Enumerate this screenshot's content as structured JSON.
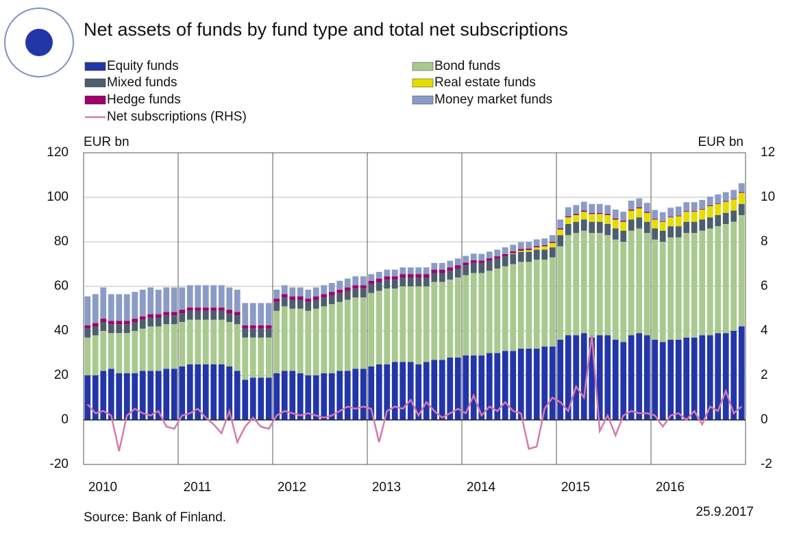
{
  "chart_data": {
    "type": "bar",
    "stacked": true,
    "title": "Net assets of funds by fund type and total net subscriptions",
    "y_label": "EUR bn",
    "y2_label": "EUR bn",
    "source": "Source: Bank of Finland.",
    "date": "25.9.2017",
    "categories": [
      "2010",
      null,
      null,
      null,
      null,
      null,
      null,
      null,
      null,
      null,
      null,
      null,
      "2011",
      null,
      null,
      null,
      null,
      null,
      null,
      null,
      null,
      null,
      null,
      null,
      "2012",
      null,
      null,
      null,
      null,
      null,
      null,
      null,
      null,
      null,
      null,
      null,
      "2013",
      null,
      null,
      null,
      null,
      null,
      null,
      null,
      null,
      null,
      null,
      null,
      "2014",
      null,
      null,
      null,
      null,
      null,
      null,
      null,
      null,
      null,
      null,
      null,
      "2015",
      null,
      null,
      null,
      null,
      null,
      null,
      null,
      null,
      null,
      null,
      null,
      "2016",
      null,
      null,
      null,
      null,
      null,
      null,
      null,
      null,
      null,
      null,
      null
    ],
    "series": [
      {
        "name": "Equity funds",
        "color": "#2336a8",
        "values": [
          20,
          20,
          22,
          23,
          21,
          21,
          21,
          22,
          22,
          22,
          23,
          23,
          24,
          25,
          25,
          25,
          25,
          25,
          24,
          22,
          18,
          19,
          19,
          19,
          21,
          22,
          22,
          21,
          20,
          20,
          21,
          21,
          22,
          22,
          23,
          23,
          24,
          25,
          25,
          26,
          26,
          26,
          25,
          26,
          27,
          27,
          28,
          28,
          29,
          29,
          29,
          30,
          30,
          31,
          31,
          32,
          32,
          32,
          33,
          33,
          36,
          38,
          38,
          39,
          37,
          38,
          38,
          36,
          35,
          38,
          39,
          38,
          36,
          35,
          36,
          36,
          37,
          37,
          38,
          38,
          39,
          39,
          40,
          42
        ]
      },
      {
        "name": "Bond funds",
        "color": "#a9c98f",
        "values": [
          17,
          18,
          18,
          16,
          18,
          18,
          19,
          19,
          20,
          20,
          20,
          20,
          20,
          20,
          20,
          20,
          20,
          20,
          20,
          21,
          19,
          18,
          18,
          18,
          28,
          29,
          28,
          29,
          29,
          30,
          30,
          31,
          31,
          32,
          32,
          32,
          33,
          33,
          34,
          33,
          34,
          34,
          35,
          34,
          35,
          35,
          35,
          36,
          36,
          37,
          37,
          37,
          38,
          38,
          39,
          39,
          39,
          40,
          39,
          40,
          42,
          45,
          46,
          46,
          47,
          46,
          45,
          45,
          45,
          47,
          47,
          46,
          45,
          45,
          46,
          46,
          47,
          47,
          47,
          48,
          48,
          49,
          49,
          50
        ]
      },
      {
        "name": "Mixed funds",
        "color": "#4d5e6e",
        "values": [
          4,
          4,
          4,
          4,
          4,
          4,
          4,
          4,
          4,
          4,
          4,
          4,
          4,
          4,
          4,
          4,
          4,
          4,
          4,
          4,
          4,
          4,
          4,
          4,
          4,
          4,
          4,
          4,
          4,
          4,
          4,
          4,
          4,
          4,
          4,
          4,
          4,
          4,
          4,
          4,
          4,
          4,
          4,
          4,
          4,
          4,
          4,
          4,
          4.5,
          4.5,
          4.5,
          4.5,
          4.5,
          4.5,
          4.5,
          4.5,
          4.5,
          4.5,
          4.5,
          4.5,
          5,
          5,
          5,
          5,
          5,
          5,
          5,
          5,
          5,
          5,
          5,
          5,
          5,
          5,
          5,
          5,
          5,
          5,
          5,
          5,
          5,
          5,
          5,
          5
        ]
      },
      {
        "name": "Real estate funds",
        "color": "#e6dc00",
        "values": [
          0,
          0,
          0,
          0,
          0,
          0,
          0,
          0,
          0,
          0,
          0,
          0,
          0,
          0,
          0,
          0,
          0,
          0,
          0,
          0,
          0,
          0,
          0,
          0,
          0,
          0,
          0,
          0,
          0,
          0,
          0,
          0,
          0,
          0,
          0,
          0,
          0,
          0,
          0,
          0,
          0,
          0,
          0,
          0,
          0,
          0,
          0,
          0,
          0,
          0,
          0,
          0,
          0,
          0,
          0.3,
          0.5,
          0.8,
          1,
          1.5,
          2,
          2.5,
          3,
          3,
          3.5,
          3.5,
          3.5,
          4,
          4,
          4,
          4,
          4,
          4,
          4,
          4,
          4,
          4.5,
          4.5,
          4.5,
          4.5,
          5,
          5,
          5,
          5,
          5
        ]
      },
      {
        "name": "Hedge funds",
        "color": "#a0006a",
        "values": [
          1.5,
          1.5,
          1.5,
          1.5,
          1.5,
          1.5,
          1.5,
          1.5,
          1.5,
          1.5,
          1.5,
          1.5,
          1.5,
          1.5,
          1.5,
          1.5,
          1.5,
          1.5,
          1.5,
          1.5,
          1.5,
          1.5,
          1.5,
          1.5,
          1.5,
          1.5,
          1.5,
          1.5,
          1.5,
          1.5,
          1.5,
          1.5,
          1.5,
          1.5,
          1.5,
          1.5,
          1.5,
          1.5,
          1.5,
          1.5,
          1.5,
          1.5,
          1.5,
          1.5,
          1.5,
          1.5,
          1.5,
          1.5,
          1.2,
          1.2,
          1.1,
          1.1,
          1,
          1,
          0.9,
          0.8,
          0.7,
          0.6,
          0.5,
          0.5,
          0.5,
          0.5,
          0.5,
          0.5,
          0.5,
          0.5,
          0.5,
          0.5,
          0.5,
          0.5,
          0.5,
          0.5,
          0.3,
          0.3,
          0.3,
          0.3,
          0.3,
          0.3,
          0.3,
          0.3,
          0.3,
          0.3,
          0.3,
          0.3
        ]
      },
      {
        "name": "Money market funds",
        "color": "#8a9bc6",
        "values": [
          13,
          13,
          14,
          12,
          12,
          12,
          12,
          12,
          12,
          11,
          11,
          11,
          10,
          10,
          10,
          10,
          10,
          10,
          10,
          10,
          10,
          10,
          10,
          10,
          4,
          4,
          4,
          4,
          4,
          4,
          4,
          4,
          4,
          4,
          4,
          4,
          3,
          3,
          3,
          3,
          3,
          3,
          3,
          3,
          3,
          3,
          3,
          3,
          3,
          3,
          3,
          3,
          3,
          3,
          3,
          3,
          3,
          3,
          3,
          3,
          4,
          4,
          4,
          4,
          4,
          4,
          4,
          4,
          4,
          4,
          4,
          4,
          4,
          4,
          4,
          4,
          4,
          4,
          4,
          4,
          4,
          4,
          4,
          4
        ]
      },
      {
        "name": "Net subscriptions (RHS)",
        "color": "#d47aaa",
        "type": "line",
        "axis": "y2",
        "values": [
          0.7,
          0.3,
          0.4,
          0.2,
          -1.4,
          0.2,
          0.5,
          0.3,
          0.2,
          0.4,
          -0.3,
          -0.4,
          0.2,
          0.3,
          0.5,
          0.1,
          -0.2,
          -0.6,
          0.4,
          -1.0,
          -0.3,
          0.1,
          -0.3,
          -0.4,
          0.2,
          0.4,
          0.3,
          0.2,
          0.3,
          0.2,
          0.1,
          0.2,
          0.4,
          0.6,
          0.5,
          0.6,
          0.5,
          -1.0,
          0.4,
          0.6,
          0.5,
          0.9,
          0.2,
          0.8,
          0.4,
          0.1,
          0.3,
          0.5,
          0.3,
          1.1,
          0.2,
          0.6,
          0.4,
          0.8,
          0.4,
          0.3,
          -1.3,
          -1.2,
          0.5,
          1.0,
          0.8,
          0.4,
          1.5,
          1.0,
          3.8,
          -0.5,
          0.2,
          -0.7,
          0.2,
          0.4,
          0.3,
          0.3,
          0.2,
          -0.3,
          0.2,
          0.3,
          0.0,
          0.4,
          -0.2,
          0.6,
          0.4,
          1.3,
          0.3,
          0.6
        ]
      }
    ],
    "ylim": [
      -20,
      120
    ],
    "yticks": [
      -20,
      0,
      20,
      40,
      60,
      80,
      100,
      120
    ],
    "y2lim": [
      -2,
      12
    ],
    "y2ticks": [
      -2,
      0,
      2,
      4,
      6,
      8,
      10,
      12
    ],
    "grid": true
  }
}
